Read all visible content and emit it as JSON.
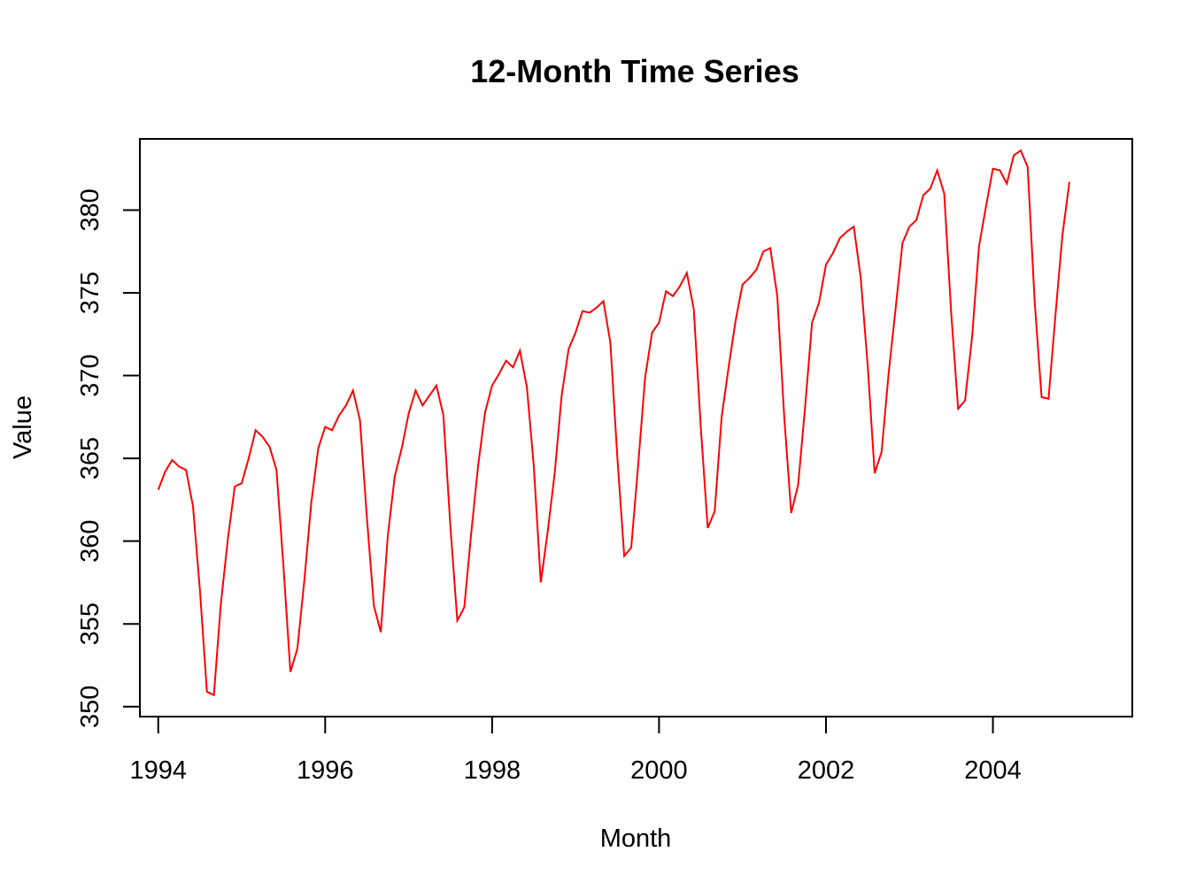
{
  "chart_data": {
    "type": "line",
    "title": "12-Month Time Series",
    "xlabel": "Month",
    "ylabel": "Value",
    "xlim": [
      1993.78,
      2005.67
    ],
    "ylim": [
      349.4,
      384.3
    ],
    "x_ticks": [
      1994,
      1996,
      1998,
      2000,
      2002,
      2004
    ],
    "x_tick_labels": [
      "1994",
      "1996",
      "1998",
      "2000",
      "2002",
      "2004"
    ],
    "y_ticks": [
      350,
      355,
      360,
      365,
      370,
      375,
      380
    ],
    "y_tick_labels": [
      "350",
      "355",
      "360",
      "365",
      "370",
      "375",
      "380"
    ],
    "grid": false,
    "legend": "none",
    "line_color": "#ff0000",
    "x_start": 1994.0,
    "x_step": 0.083333,
    "series": [
      {
        "values": [
          363.1,
          364.2,
          364.9,
          364.5,
          364.3,
          362.1,
          357.0,
          350.9,
          350.7,
          356.2,
          360.1,
          363.3,
          363.5,
          365.0,
          366.7,
          366.3,
          365.7,
          364.3,
          358.5,
          352.1,
          353.5,
          357.6,
          362.3,
          365.6,
          366.9,
          366.7,
          367.6,
          368.2,
          369.1,
          367.3,
          361.4,
          356.1,
          354.5,
          360.3,
          363.9,
          365.6,
          367.7,
          369.1,
          368.2,
          368.8,
          369.4,
          367.6,
          360.9,
          355.2,
          356.0,
          360.5,
          364.6,
          367.8,
          369.4,
          370.1,
          370.9,
          370.5,
          371.5,
          369.3,
          364.5,
          357.5,
          360.6,
          364.1,
          368.8,
          371.6,
          372.6,
          373.9,
          373.8,
          374.1,
          374.5,
          372.0,
          365.1,
          359.1,
          359.6,
          364.6,
          369.9,
          372.6,
          373.2,
          375.1,
          374.8,
          375.4,
          376.2,
          374.0,
          366.9,
          360.8,
          361.8,
          367.5,
          370.5,
          373.3,
          375.5,
          375.9,
          376.4,
          377.5,
          377.7,
          374.8,
          367.5,
          361.7,
          363.4,
          368.1,
          373.2,
          374.4,
          376.7,
          377.4,
          378.3,
          378.7,
          379.0,
          375.9,
          370.6,
          364.1,
          365.4,
          370.1,
          374.0,
          378.0,
          379.0,
          379.4,
          380.9,
          381.3,
          382.4,
          381.0,
          373.8,
          368.0,
          368.5,
          372.3,
          377.8,
          380.2,
          382.5,
          382.4,
          381.6,
          383.3,
          383.6,
          382.6,
          374.5,
          368.7,
          368.6,
          373.7,
          378.5,
          381.7
        ]
      }
    ]
  }
}
